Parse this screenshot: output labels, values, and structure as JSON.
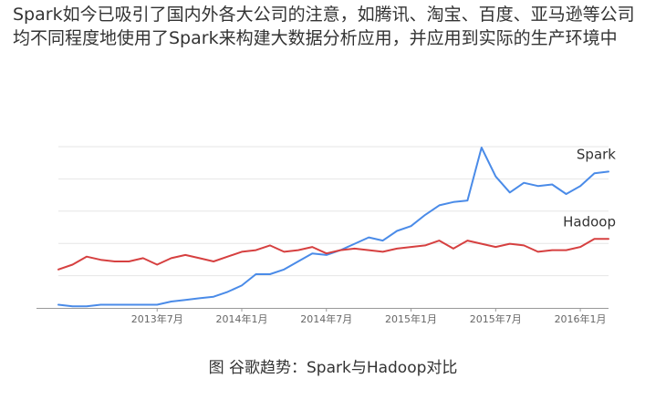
{
  "intro_text": "Spark如今已吸引了国内外各大公司的注意，如腾讯、淘宝、百度、亚马逊等公司均不同程度地使用了Spark来构建大数据分析应用，并应用到实际的生产环境中",
  "caption": "图 谷歌趋势：Spark与Hadoop对比",
  "chart_data": {
    "type": "line",
    "title": "",
    "xlabel": "",
    "ylabel": "",
    "x_start": "2012-12",
    "x_end": "2016-03",
    "ylim": [
      0,
      100
    ],
    "grid": true,
    "x_ticks": [
      {
        "date": "2013-07",
        "label": "2013年7月"
      },
      {
        "date": "2014-01",
        "label": "2014年1月"
      },
      {
        "date": "2014-07",
        "label": "2014年7月"
      },
      {
        "date": "2015-01",
        "label": "2015年1月"
      },
      {
        "date": "2015-07",
        "label": "2015年7月"
      },
      {
        "date": "2016-01",
        "label": "2016年1月"
      }
    ],
    "x": [
      "2012-12",
      "2013-01",
      "2013-02",
      "2013-03",
      "2013-04",
      "2013-05",
      "2013-06",
      "2013-07",
      "2013-08",
      "2013-09",
      "2013-10",
      "2013-11",
      "2013-12",
      "2014-01",
      "2014-02",
      "2014-03",
      "2014-04",
      "2014-05",
      "2014-06",
      "2014-07",
      "2014-08",
      "2014-09",
      "2014-10",
      "2014-11",
      "2014-12",
      "2015-01",
      "2015-02",
      "2015-03",
      "2015-04",
      "2015-05",
      "2015-06",
      "2015-07",
      "2015-08",
      "2015-09",
      "2015-10",
      "2015-11",
      "2015-12",
      "2016-01",
      "2016-02",
      "2016-03"
    ],
    "series": [
      {
        "name": "Spark",
        "color": "#4a8be8",
        "values": [
          2,
          1,
          1,
          2,
          2,
          2,
          2,
          2,
          4,
          5,
          6,
          7,
          10,
          14,
          21,
          21,
          24,
          29,
          34,
          33,
          36,
          40,
          44,
          42,
          48,
          51,
          58,
          64,
          66,
          67,
          100,
          82,
          72,
          78,
          76,
          77,
          71,
          76,
          84,
          85
        ]
      },
      {
        "name": "Hadoop",
        "color": "#d64040",
        "values": [
          24,
          27,
          32,
          30,
          29,
          29,
          31,
          27,
          31,
          33,
          31,
          29,
          32,
          35,
          36,
          39,
          35,
          36,
          38,
          34,
          36,
          37,
          36,
          35,
          37,
          38,
          39,
          42,
          37,
          42,
          40,
          38,
          40,
          39,
          35,
          36,
          36,
          38,
          43,
          43
        ]
      }
    ]
  }
}
